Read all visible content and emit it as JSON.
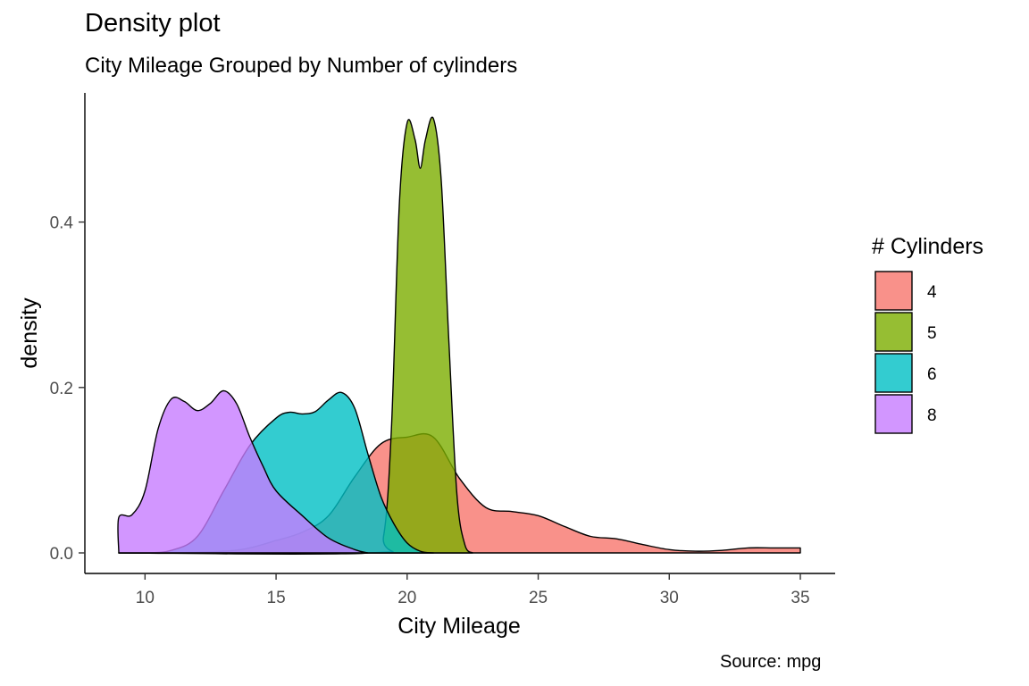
{
  "chart_data": {
    "type": "area",
    "title": "Density plot",
    "subtitle": "City Mileage Grouped by Number of cylinders",
    "caption": "Source: mpg",
    "xlabel": "City Mileage",
    "ylabel": "density",
    "xlim": [
      9,
      35
    ],
    "ylim": [
      0,
      0.53
    ],
    "x_ticks": [
      10,
      15,
      20,
      25,
      30,
      35
    ],
    "y_ticks": [
      0.0,
      0.2,
      0.4
    ],
    "y_tick_labels": [
      "0.0",
      "0.2",
      "0.4"
    ],
    "grid": false,
    "legend": {
      "title": "# Cylinders",
      "position": "right"
    },
    "series": [
      {
        "name": "4",
        "color": "#F8766D",
        "points": [
          [
            9,
            0.0
          ],
          [
            11,
            0.0
          ],
          [
            13,
            0.002
          ],
          [
            14,
            0.006
          ],
          [
            15,
            0.015
          ],
          [
            16,
            0.025
          ],
          [
            17,
            0.045
          ],
          [
            18,
            0.092
          ],
          [
            19,
            0.132
          ],
          [
            20,
            0.14
          ],
          [
            21,
            0.14
          ],
          [
            22,
            0.09
          ],
          [
            23,
            0.055
          ],
          [
            24,
            0.05
          ],
          [
            25,
            0.045
          ],
          [
            26,
            0.032
          ],
          [
            27,
            0.02
          ],
          [
            28,
            0.017
          ],
          [
            29,
            0.01
          ],
          [
            30,
            0.004
          ],
          [
            31,
            0.002
          ],
          [
            32,
            0.003
          ],
          [
            33,
            0.006
          ],
          [
            34,
            0.006
          ],
          [
            35,
            0.006
          ]
        ]
      },
      {
        "name": "5",
        "color": "#7CAE00",
        "points": [
          [
            9,
            0.0
          ],
          [
            18.6,
            0.0
          ],
          [
            19.1,
            0.02
          ],
          [
            19.4,
            0.15
          ],
          [
            19.7,
            0.42
          ],
          [
            20.0,
            0.52
          ],
          [
            20.3,
            0.5
          ],
          [
            20.5,
            0.465
          ],
          [
            20.7,
            0.5
          ],
          [
            21.0,
            0.525
          ],
          [
            21.3,
            0.45
          ],
          [
            21.6,
            0.25
          ],
          [
            21.9,
            0.07
          ],
          [
            22.2,
            0.01
          ],
          [
            22.5,
            0.0
          ]
        ]
      },
      {
        "name": "6",
        "color": "#00BFC4",
        "points": [
          [
            9,
            0.0
          ],
          [
            10,
            0.0
          ],
          [
            11,
            0.003
          ],
          [
            12,
            0.02
          ],
          [
            13,
            0.075
          ],
          [
            14,
            0.13
          ],
          [
            15,
            0.163
          ],
          [
            15.5,
            0.17
          ],
          [
            16,
            0.168
          ],
          [
            16.5,
            0.171
          ],
          [
            17,
            0.185
          ],
          [
            17.5,
            0.194
          ],
          [
            18,
            0.175
          ],
          [
            18.5,
            0.12
          ],
          [
            19,
            0.068
          ],
          [
            19.5,
            0.035
          ],
          [
            20,
            0.012
          ],
          [
            20.5,
            0.002
          ],
          [
            21,
            0.0
          ]
        ]
      },
      {
        "name": "8",
        "color": "#C77CFF",
        "points": [
          [
            9,
            0.0
          ],
          [
            9,
            0.043
          ],
          [
            9.5,
            0.046
          ],
          [
            10,
            0.075
          ],
          [
            10.5,
            0.15
          ],
          [
            11,
            0.186
          ],
          [
            11.5,
            0.183
          ],
          [
            12,
            0.172
          ],
          [
            12.5,
            0.181
          ],
          [
            13,
            0.196
          ],
          [
            13.5,
            0.18
          ],
          [
            14,
            0.14
          ],
          [
            14.5,
            0.105
          ],
          [
            15,
            0.075
          ],
          [
            16,
            0.045
          ],
          [
            17,
            0.018
          ],
          [
            18,
            0.004
          ],
          [
            18.5,
            0.0
          ]
        ]
      }
    ]
  }
}
